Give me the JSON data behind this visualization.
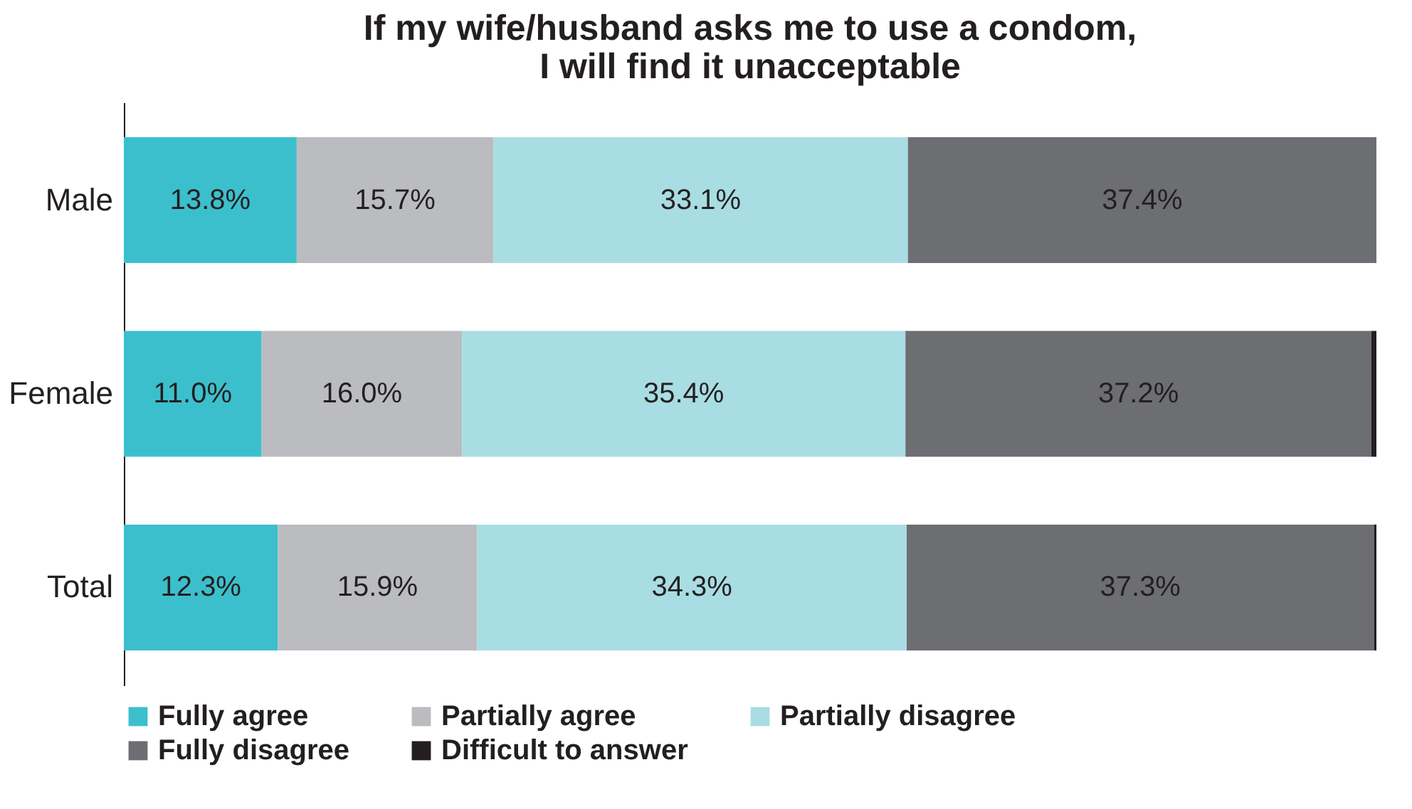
{
  "chart_data": {
    "type": "bar",
    "orientation": "horizontal",
    "stacked": true,
    "title": "If my wife/husband asks me to use a condom,\nI will find it unacceptable",
    "categories": [
      "Male",
      "Female",
      "Total"
    ],
    "xlim": [
      0,
      100
    ],
    "tick_labels": "y",
    "legend": "bottom",
    "series": [
      {
        "name": "Fully agree",
        "color": "#3cbfcc",
        "values": [
          13.8,
          11.0,
          12.3
        ],
        "value_labels": [
          "13.8%",
          "11.0%",
          "12.3%"
        ]
      },
      {
        "name": "Partially agree",
        "color": "#bbbcc0",
        "values": [
          15.7,
          16.0,
          15.9
        ],
        "value_labels": [
          "15.7%",
          "16.0%",
          "15.9%"
        ]
      },
      {
        "name": "Partially disagree",
        "color": "#a8dde3",
        "values": [
          33.1,
          35.4,
          34.3
        ],
        "value_labels": [
          "33.1%",
          "35.4%",
          "34.3%"
        ]
      },
      {
        "name": "Fully disagree",
        "color": "#6d6e72",
        "values": [
          37.4,
          37.2,
          37.3
        ],
        "value_labels": [
          "37.4%",
          "37.2%",
          "37.3%"
        ]
      },
      {
        "name": "Difficult to answer",
        "color": "#231f20",
        "values": [
          0.0,
          0.4,
          0.2
        ],
        "value_labels": [
          null,
          null,
          null
        ]
      }
    ]
  }
}
